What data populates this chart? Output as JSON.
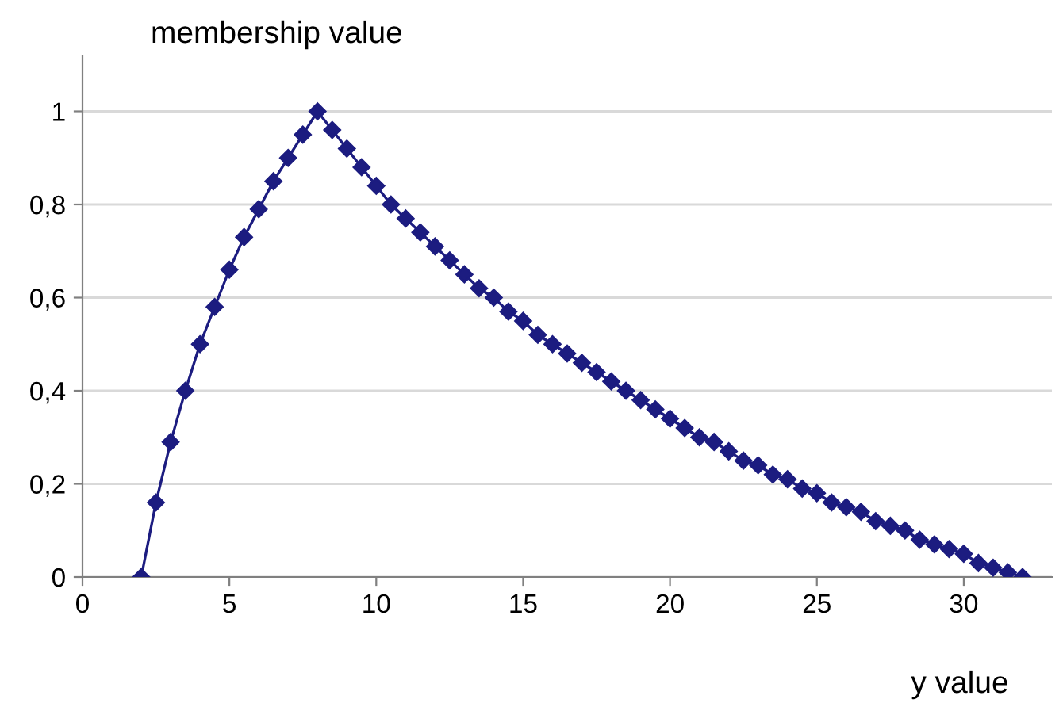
{
  "chart_data": {
    "type": "line",
    "xlabel": "y value",
    "ylabel": "membership value",
    "x": [
      2,
      2.5,
      3,
      3.5,
      4,
      4.5,
      5,
      5.5,
      6,
      6.5,
      7,
      7.5,
      8,
      8.5,
      9,
      9.5,
      10,
      10.5,
      11,
      11.5,
      12,
      12.5,
      13,
      13.5,
      14,
      14.5,
      15,
      15.5,
      16,
      16.5,
      17,
      17.5,
      18,
      18.5,
      19,
      19.5,
      20,
      20.5,
      21,
      21.5,
      22,
      22.5,
      23,
      23.5,
      24,
      24.5,
      25,
      25.5,
      26,
      26.5,
      27,
      27.5,
      28,
      28.5,
      29,
      29.5,
      30,
      30.5,
      31,
      31.5,
      32
    ],
    "series": [
      {
        "color": "#1c1c80",
        "values": [
          0,
          0.16,
          0.29,
          0.4,
          0.5,
          0.58,
          0.66,
          0.73,
          0.79,
          0.85,
          0.9,
          0.95,
          1,
          0.96,
          0.92,
          0.88,
          0.84,
          0.8,
          0.77,
          0.74,
          0.71,
          0.68,
          0.65,
          0.62,
          0.6,
          0.57,
          0.55,
          0.52,
          0.5,
          0.48,
          0.46,
          0.44,
          0.42,
          0.4,
          0.38,
          0.36,
          0.34,
          0.32,
          0.3,
          0.29,
          0.27,
          0.25,
          0.24,
          0.22,
          0.21,
          0.19,
          0.18,
          0.16,
          0.15,
          0.14,
          0.12,
          0.11,
          0.1,
          0.08,
          0.07,
          0.06,
          0.05,
          0.03,
          0.02,
          0.01,
          0
        ]
      }
    ],
    "xlim": [
      0,
      33
    ],
    "xticks": [
      0,
      5,
      10,
      15,
      20,
      25,
      30
    ],
    "ylim": [
      0,
      1.12
    ],
    "yticks": [
      0,
      {
        "value": 0.2,
        "label": "0,2"
      },
      {
        "value": 0.4,
        "label": "0,4"
      },
      {
        "value": 0.6,
        "label": "0,6"
      },
      {
        "value": 0.8,
        "label": "0,8"
      },
      1
    ],
    "grid": "y",
    "legend": false,
    "marker": "diamond",
    "line_style": "solid"
  }
}
